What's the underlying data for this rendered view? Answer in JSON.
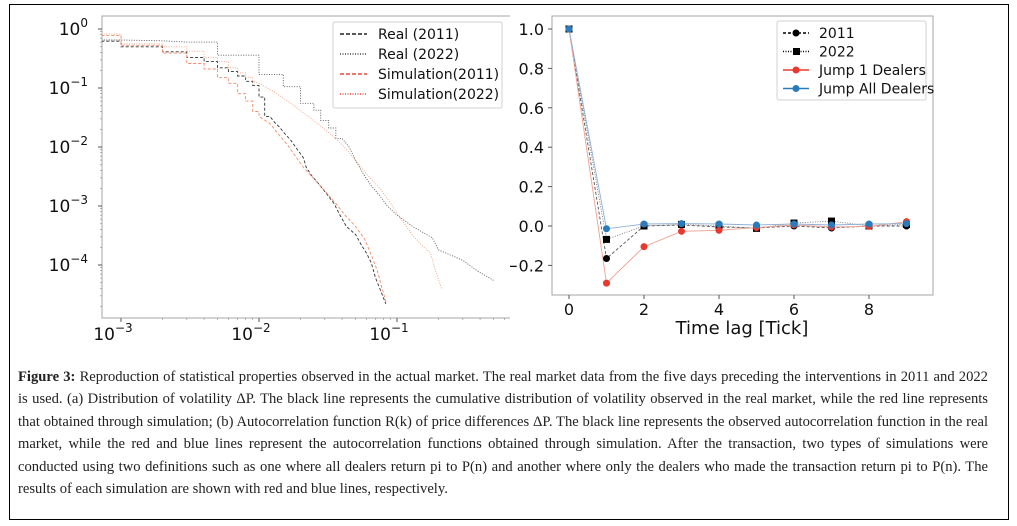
{
  "caption": {
    "label": "Figure 3:",
    "text": " Reproduction of statistical properties observed in the actual market. The real market data from the five days preceding the interventions in 2011 and 2022 is used. (a) Distribution of volatility ΔP. The black line represents the cumulative distribution of volatility observed in the real market, while the red line represents that obtained through simulation; (b) Autocorrelation function R(k) of price differences ΔP. The black line represents the observed autocorrelation function in the real market, while the red and blue lines represent the autocorrelation functions obtained through simulation. After the transaction, two types of simulations were conducted using two definitions such as one where all dealers return pi to P(n) and another where only the dealers who made the transaction return pi to P(n). The results of each simulation are shown with red and blue lines, respectively."
  },
  "chart_data": [
    {
      "type": "line",
      "title": "",
      "panel": "a",
      "description": "Cumulative distribution of volatility ΔP (log-log, step curves)",
      "xlabel": "",
      "ylabel": "",
      "xscale": "log",
      "yscale": "log",
      "xlim": [
        0.00072,
        0.6
      ],
      "ylim": [
        1.3e-05,
        1.2
      ],
      "xticks": [
        {
          "value": 0.001,
          "base": "10",
          "exp": "−3"
        },
        {
          "value": 0.01,
          "base": "10",
          "exp": "−2"
        },
        {
          "value": 0.1,
          "base": "10",
          "exp": "−1"
        }
      ],
      "yticks": [
        {
          "value": 1,
          "base": "10",
          "exp": "0"
        },
        {
          "value": 0.1,
          "base": "10",
          "exp": "−1"
        },
        {
          "value": 0.01,
          "base": "10",
          "exp": "−2"
        },
        {
          "value": 0.001,
          "base": "10",
          "exp": "−3"
        },
        {
          "value": 0.0001,
          "base": "10",
          "exp": "−4"
        }
      ],
      "legend_position": "top-right",
      "series": [
        {
          "name": "Real (2011)",
          "color": "#333333",
          "dash": "dashed",
          "step": true,
          "points": [
            [
              0.00072,
              0.62
            ],
            [
              0.001,
              0.62
            ],
            [
              0.001,
              0.5
            ],
            [
              0.002,
              0.5
            ],
            [
              0.002,
              0.41
            ],
            [
              0.003,
              0.41
            ],
            [
              0.003,
              0.33
            ],
            [
              0.004,
              0.33
            ],
            [
              0.004,
              0.28
            ],
            [
              0.005,
              0.28
            ],
            [
              0.005,
              0.22
            ],
            [
              0.006,
              0.22
            ],
            [
              0.006,
              0.19
            ],
            [
              0.007,
              0.19
            ],
            [
              0.007,
              0.16
            ],
            [
              0.008,
              0.16
            ],
            [
              0.008,
              0.13
            ],
            [
              0.009,
              0.13
            ],
            [
              0.009,
              0.11
            ],
            [
              0.01,
              0.11
            ],
            [
              0.01,
              0.07
            ],
            [
              0.011,
              0.07
            ],
            [
              0.011,
              0.033
            ],
            [
              0.012,
              0.033
            ],
            [
              0.013,
              0.026
            ],
            [
              0.014,
              0.022
            ],
            [
              0.015,
              0.018
            ],
            [
              0.017,
              0.013
            ],
            [
              0.019,
              0.009
            ],
            [
              0.021,
              0.0065
            ],
            [
              0.022,
              0.0045
            ],
            [
              0.024,
              0.0033
            ],
            [
              0.027,
              0.0024
            ],
            [
              0.031,
              0.0016
            ],
            [
              0.035,
              0.0011
            ],
            [
              0.038,
              0.00075
            ],
            [
              0.043,
              0.00045
            ],
            [
              0.05,
              0.00033
            ],
            [
              0.055,
              0.00022
            ],
            [
              0.06,
              0.00016
            ],
            [
              0.065,
              0.00011
            ],
            [
              0.07,
              6e-05
            ],
            [
              0.075,
              4e-05
            ],
            [
              0.083,
              2.2e-05
            ]
          ]
        },
        {
          "name": "Real (2022)",
          "color": "#555555",
          "dash": "dotted",
          "step": true,
          "points": [
            [
              0.00072,
              0.65
            ],
            [
              0.001,
              0.65
            ],
            [
              0.002,
              0.63
            ],
            [
              0.003,
              0.6
            ],
            [
              0.005,
              0.6
            ],
            [
              0.005,
              0.36
            ],
            [
              0.01,
              0.36
            ],
            [
              0.01,
              0.17
            ],
            [
              0.015,
              0.17
            ],
            [
              0.015,
              0.105
            ],
            [
              0.02,
              0.105
            ],
            [
              0.02,
              0.055
            ],
            [
              0.025,
              0.055
            ],
            [
              0.025,
              0.042
            ],
            [
              0.028,
              0.042
            ],
            [
              0.028,
              0.028
            ],
            [
              0.032,
              0.028
            ],
            [
              0.032,
              0.021
            ],
            [
              0.036,
              0.021
            ],
            [
              0.036,
              0.014
            ],
            [
              0.04,
              0.014
            ],
            [
              0.045,
              0.01
            ],
            [
              0.05,
              0.006
            ],
            [
              0.057,
              0.0035
            ],
            [
              0.065,
              0.0022
            ],
            [
              0.075,
              0.0015
            ],
            [
              0.085,
              0.001
            ],
            [
              0.1,
              0.0007
            ],
            [
              0.13,
              0.00045
            ],
            [
              0.18,
              0.00029
            ],
            [
              0.2,
              0.00018
            ],
            [
              0.3,
              0.00012
            ],
            [
              0.38,
              8e-05
            ],
            [
              0.5,
              5.5e-05
            ]
          ]
        },
        {
          "name": "Simulation(2011)",
          "color": "#f08a6a",
          "dash": "dashed",
          "step": true,
          "points": [
            [
              0.00072,
              0.78
            ],
            [
              0.001,
              0.78
            ],
            [
              0.001,
              0.53
            ],
            [
              0.002,
              0.53
            ],
            [
              0.002,
              0.39
            ],
            [
              0.003,
              0.39
            ],
            [
              0.003,
              0.26
            ],
            [
              0.004,
              0.26
            ],
            [
              0.004,
              0.21
            ],
            [
              0.005,
              0.21
            ],
            [
              0.005,
              0.15
            ],
            [
              0.006,
              0.15
            ],
            [
              0.006,
              0.12
            ],
            [
              0.007,
              0.12
            ],
            [
              0.007,
              0.08
            ],
            [
              0.008,
              0.08
            ],
            [
              0.008,
              0.06
            ],
            [
              0.009,
              0.06
            ],
            [
              0.009,
              0.04
            ],
            [
              0.01,
              0.04
            ],
            [
              0.01,
              0.033
            ],
            [
              0.012,
              0.025
            ],
            [
              0.014,
              0.016
            ],
            [
              0.016,
              0.011
            ],
            [
              0.018,
              0.0075
            ],
            [
              0.021,
              0.0045
            ],
            [
              0.025,
              0.0029
            ],
            [
              0.03,
              0.0018
            ],
            [
              0.036,
              0.0011
            ],
            [
              0.042,
              0.0007
            ],
            [
              0.05,
              0.00045
            ],
            [
              0.058,
              0.00028
            ],
            [
              0.065,
              0.00015
            ],
            [
              0.072,
              8e-05
            ],
            [
              0.078,
              4e-05
            ],
            [
              0.084,
              2.2e-05
            ]
          ]
        },
        {
          "name": "Simulation(2022)",
          "color": "#f0a080",
          "dash": "dotted",
          "step": true,
          "points": [
            [
              0.00072,
              0.82
            ],
            [
              0.001,
              0.82
            ],
            [
              0.001,
              0.56
            ],
            [
              0.002,
              0.56
            ],
            [
              0.002,
              0.5
            ],
            [
              0.003,
              0.5
            ],
            [
              0.003,
              0.42
            ],
            [
              0.004,
              0.42
            ],
            [
              0.004,
              0.33
            ],
            [
              0.005,
              0.33
            ],
            [
              0.005,
              0.28
            ],
            [
              0.006,
              0.28
            ],
            [
              0.006,
              0.22
            ],
            [
              0.007,
              0.22
            ],
            [
              0.007,
              0.18
            ],
            [
              0.008,
              0.18
            ],
            [
              0.008,
              0.15
            ],
            [
              0.009,
              0.15
            ],
            [
              0.009,
              0.13
            ],
            [
              0.01,
              0.12
            ],
            [
              0.013,
              0.085
            ],
            [
              0.017,
              0.055
            ],
            [
              0.022,
              0.035
            ],
            [
              0.03,
              0.02
            ],
            [
              0.04,
              0.011
            ],
            [
              0.05,
              0.006
            ],
            [
              0.06,
              0.0035
            ],
            [
              0.075,
              0.002
            ],
            [
              0.09,
              0.0011
            ],
            [
              0.11,
              0.00055
            ],
            [
              0.13,
              0.00032
            ],
            [
              0.15,
              0.00022
            ],
            [
              0.175,
              0.00016
            ],
            [
              0.19,
              8e-05
            ],
            [
              0.21,
              4e-05
            ]
          ]
        }
      ]
    },
    {
      "type": "line",
      "title": "",
      "panel": "b",
      "description": "Autocorrelation function R(k) of price differences ΔP",
      "xlabel": "Time lag [Tick]",
      "ylabel": "",
      "xlim": [
        -0.4,
        10.2
      ],
      "ylim": [
        -0.37,
        1.06
      ],
      "xticks": [
        0,
        2,
        4,
        6,
        8
      ],
      "xtick_labels": [
        "0",
        "2",
        "4",
        "6",
        "8"
      ],
      "yticks": [
        -0.2,
        0.0,
        0.2,
        0.4,
        0.6,
        0.8,
        1.0
      ],
      "ytick_labels": [
        "−0.2",
        "0.0",
        "0.2",
        "0.4",
        "0.6",
        "0.8",
        "1.0"
      ],
      "legend_position": "top-right",
      "x": [
        0,
        1,
        2,
        3,
        4,
        5,
        6,
        7,
        8,
        9
      ],
      "series": [
        {
          "name": "2011",
          "color": "#000000",
          "dash": "dashed",
          "marker": "circle",
          "values": [
            1.0,
            -0.165,
            0.0,
            0.005,
            -0.005,
            -0.01,
            0.0,
            -0.01,
            0.0,
            0.0
          ]
        },
        {
          "name": "2022",
          "color": "#000000",
          "dash": "dotted",
          "marker": "square",
          "values": [
            1.0,
            -0.068,
            0.0,
            0.008,
            0.0,
            -0.012,
            0.015,
            0.025,
            0.0,
            0.008
          ]
        },
        {
          "name": "Jump 1 Dealers",
          "color": "#e8392f",
          "dash": "solid",
          "marker": "circle",
          "values": [
            1.0,
            -0.29,
            -0.105,
            -0.027,
            -0.022,
            -0.008,
            0.005,
            -0.005,
            -0.002,
            0.022
          ]
        },
        {
          "name": "Jump All Dealers",
          "color": "#2b7bba",
          "dash": "solid",
          "marker": "circle",
          "values": [
            1.0,
            -0.014,
            0.01,
            0.012,
            0.01,
            0.005,
            0.01,
            0.005,
            0.01,
            0.012
          ]
        }
      ]
    }
  ]
}
